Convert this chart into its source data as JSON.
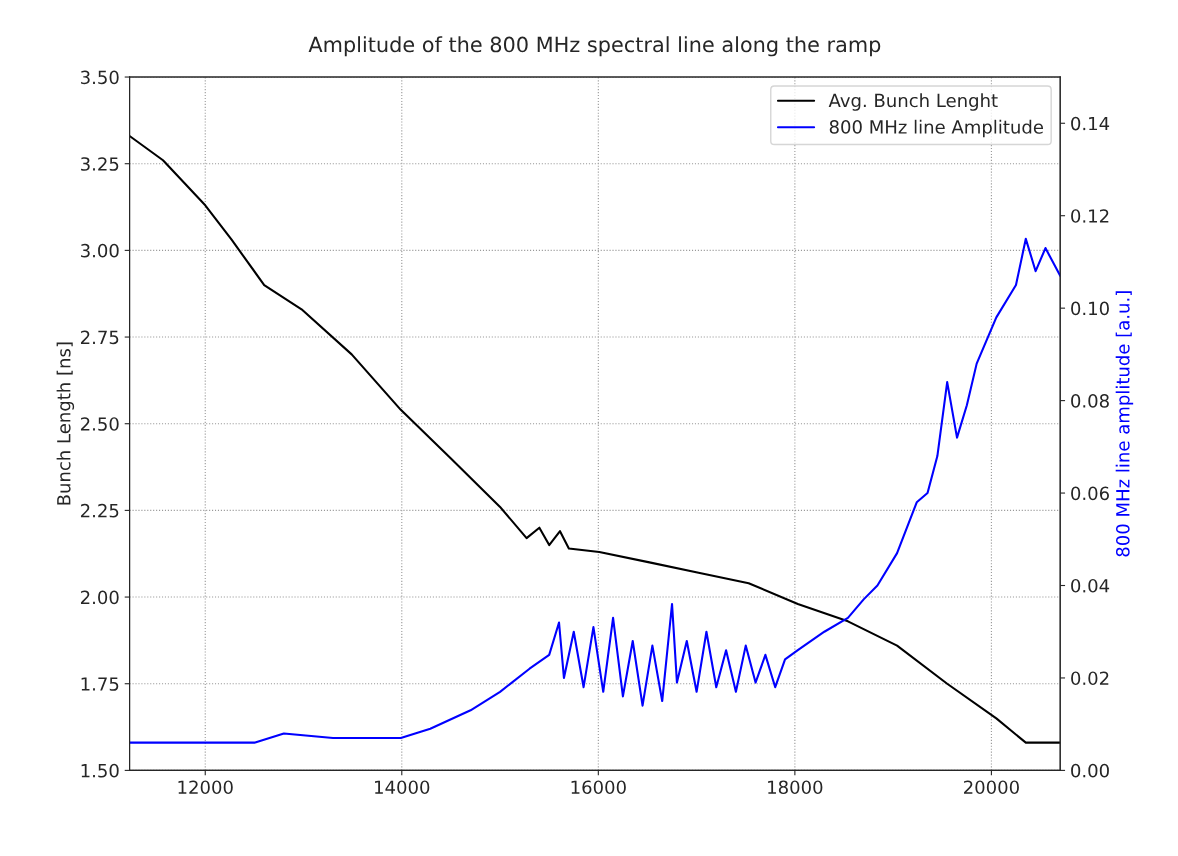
{
  "chart_data": {
    "type": "line",
    "title": "Amplitude of the 800 MHz spectral line along the ramp",
    "ylabel": "Bunch Length [ns]",
    "y2label": "800 MHz line amplitude [a.u.]",
    "xlim": [
      11230,
      20700
    ],
    "xticks": [
      12000,
      14000,
      16000,
      18000,
      20000
    ],
    "ylim": [
      1.5,
      3.5
    ],
    "yticks": [
      {
        "value": 1.5,
        "label": "1.50"
      },
      1.75,
      {
        "value": 2.0,
        "label": "2.00"
      },
      2.25,
      {
        "value": 2.5,
        "label": "2.50"
      },
      2.75,
      {
        "value": 3.0,
        "label": "3.00"
      },
      3.25,
      {
        "value": 3.5,
        "label": "3.50"
      }
    ],
    "y2lim": [
      0,
      0.15
    ],
    "y2ticks": [
      {
        "value": 0,
        "label": "0.00"
      },
      0.02,
      0.04,
      0.06,
      0.08,
      {
        "value": 0.1,
        "label": "0.10"
      },
      0.12,
      0.14
    ],
    "grid": true,
    "legend": "top right",
    "series": [
      {
        "name": "Avg. Bunch Lenght",
        "color": "#000000",
        "x": [
          11230,
          11570,
          12000,
          12270,
          12600,
          12980,
          13490,
          13990,
          14500,
          15000,
          15270,
          15400,
          15500,
          15610,
          15700,
          16010,
          16520,
          17020,
          17530,
          18030,
          18540,
          19040,
          19550,
          20050,
          20350,
          20700
        ],
        "values": [
          3.33,
          3.26,
          3.13,
          3.03,
          2.9,
          2.83,
          2.7,
          2.54,
          2.4,
          2.26,
          2.17,
          2.2,
          2.15,
          2.19,
          2.14,
          2.13,
          2.1,
          2.07,
          2.04,
          1.98,
          1.93,
          1.86,
          1.75,
          1.65,
          1.58,
          1.58
        ]
      },
      {
        "name": "800 MHz line Amplitude",
        "color": "#0000ff",
        "axis": "y2",
        "x": [
          11230,
          11800,
          12500,
          12800,
          13300,
          13990,
          14290,
          14700,
          15000,
          15300,
          15500,
          15600,
          15650,
          15750,
          15850,
          15950,
          16050,
          16150,
          16250,
          16350,
          16450,
          16550,
          16650,
          16750,
          16800,
          16900,
          17000,
          17100,
          17200,
          17300,
          17400,
          17500,
          17600,
          17700,
          17800,
          17900,
          18030,
          18300,
          18540,
          18700,
          18840,
          19040,
          19240,
          19350,
          19450,
          19550,
          19650,
          19750,
          19850,
          20050,
          20250,
          20350,
          20450,
          20550,
          20700
        ],
        "values": [
          0.006,
          0.006,
          0.006,
          0.008,
          0.007,
          0.007,
          0.009,
          0.013,
          0.017,
          0.022,
          0.025,
          0.032,
          0.02,
          0.03,
          0.018,
          0.031,
          0.017,
          0.033,
          0.016,
          0.028,
          0.014,
          0.027,
          0.015,
          0.036,
          0.019,
          0.028,
          0.017,
          0.03,
          0.018,
          0.026,
          0.017,
          0.027,
          0.019,
          0.025,
          0.018,
          0.024,
          0.026,
          0.03,
          0.033,
          0.037,
          0.04,
          0.047,
          0.058,
          0.06,
          0.068,
          0.084,
          0.072,
          0.079,
          0.088,
          0.098,
          0.105,
          0.115,
          0.108,
          0.113,
          0.107
        ]
      }
    ]
  }
}
